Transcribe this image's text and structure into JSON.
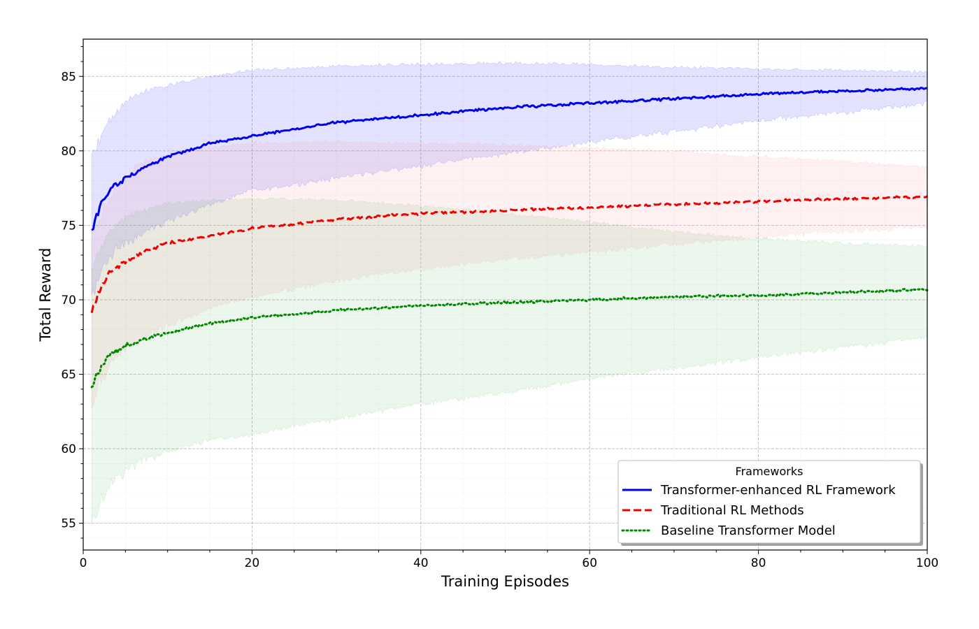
{
  "chart_data": {
    "type": "line",
    "title": "",
    "xlabel": "Training Episodes",
    "ylabel": "Total Reward",
    "xlim": [
      0,
      100
    ],
    "ylim": [
      53.2,
      87.5
    ],
    "x_ticks": [
      0,
      20,
      40,
      60,
      80,
      100
    ],
    "y_ticks": [
      55,
      60,
      65,
      70,
      75,
      80,
      85
    ],
    "grid": true,
    "legend": {
      "title": "Frameworks",
      "placement": "lower-right"
    },
    "x_domain": [
      1,
      100
    ],
    "series": [
      {
        "name": "Transformer-enhanced RL Framework",
        "color": "#0000ee",
        "dash": "solid",
        "band_color": "#0000ff",
        "x": [
          1,
          2,
          3,
          5,
          7,
          10,
          15,
          20,
          30,
          40,
          50,
          60,
          70,
          80,
          90,
          100
        ],
        "mean": [
          74.6,
          76.2,
          77.3,
          78.2,
          78.8,
          79.6,
          80.5,
          81.0,
          81.9,
          82.4,
          82.9,
          83.2,
          83.5,
          83.8,
          84.0,
          84.2
        ],
        "upper": [
          79.6,
          80.8,
          82.0,
          83.3,
          83.9,
          84.4,
          85.0,
          85.4,
          85.7,
          85.8,
          85.9,
          85.8,
          85.6,
          85.5,
          85.4,
          85.3
        ],
        "lower": [
          70.0,
          71.8,
          72.8,
          73.8,
          74.5,
          75.3,
          76.4,
          77.3,
          78.2,
          79.0,
          79.8,
          80.6,
          81.3,
          82.0,
          82.6,
          83.2
        ]
      },
      {
        "name": "Traditional RL Methods",
        "color": "#ee0000",
        "dash": "dashed",
        "band_color": "#ff8080",
        "x": [
          1,
          2,
          3,
          5,
          7,
          10,
          15,
          20,
          30,
          40,
          50,
          60,
          70,
          80,
          90,
          100
        ],
        "mean": [
          69.2,
          70.8,
          71.8,
          72.6,
          73.2,
          73.8,
          74.3,
          74.8,
          75.4,
          75.8,
          76.0,
          76.2,
          76.4,
          76.6,
          76.8,
          76.9
        ],
        "upper": [
          74.5,
          75.5,
          76.8,
          78.3,
          79.2,
          79.8,
          80.2,
          80.5,
          80.6,
          80.5,
          80.4,
          80.2,
          80.0,
          79.6,
          79.3,
          78.9
        ],
        "lower": [
          63.2,
          64.6,
          65.6,
          66.6,
          67.4,
          68.3,
          69.4,
          70.2,
          71.3,
          72.1,
          72.7,
          73.2,
          73.7,
          74.2,
          74.6,
          74.9
        ]
      },
      {
        "name": "Baseline Transformer Model",
        "color": "#008800",
        "dash": "dotted",
        "band_color": "#4caf50",
        "x": [
          1,
          2,
          3,
          5,
          7,
          10,
          15,
          20,
          30,
          40,
          50,
          60,
          70,
          80,
          90,
          100
        ],
        "mean": [
          64.3,
          65.4,
          66.2,
          66.9,
          67.3,
          67.8,
          68.4,
          68.8,
          69.3,
          69.6,
          69.8,
          70.0,
          70.2,
          70.3,
          70.5,
          70.7
        ],
        "upper": [
          72.0,
          73.4,
          74.6,
          75.5,
          76.0,
          76.5,
          76.7,
          76.8,
          76.7,
          76.3,
          75.8,
          75.2,
          74.6,
          74.1,
          73.8,
          73.6
        ],
        "lower": [
          55.0,
          56.4,
          57.4,
          58.5,
          59.2,
          59.9,
          60.6,
          61.0,
          62.0,
          63.0,
          63.8,
          64.7,
          65.4,
          66.1,
          66.8,
          67.5
        ]
      }
    ]
  }
}
